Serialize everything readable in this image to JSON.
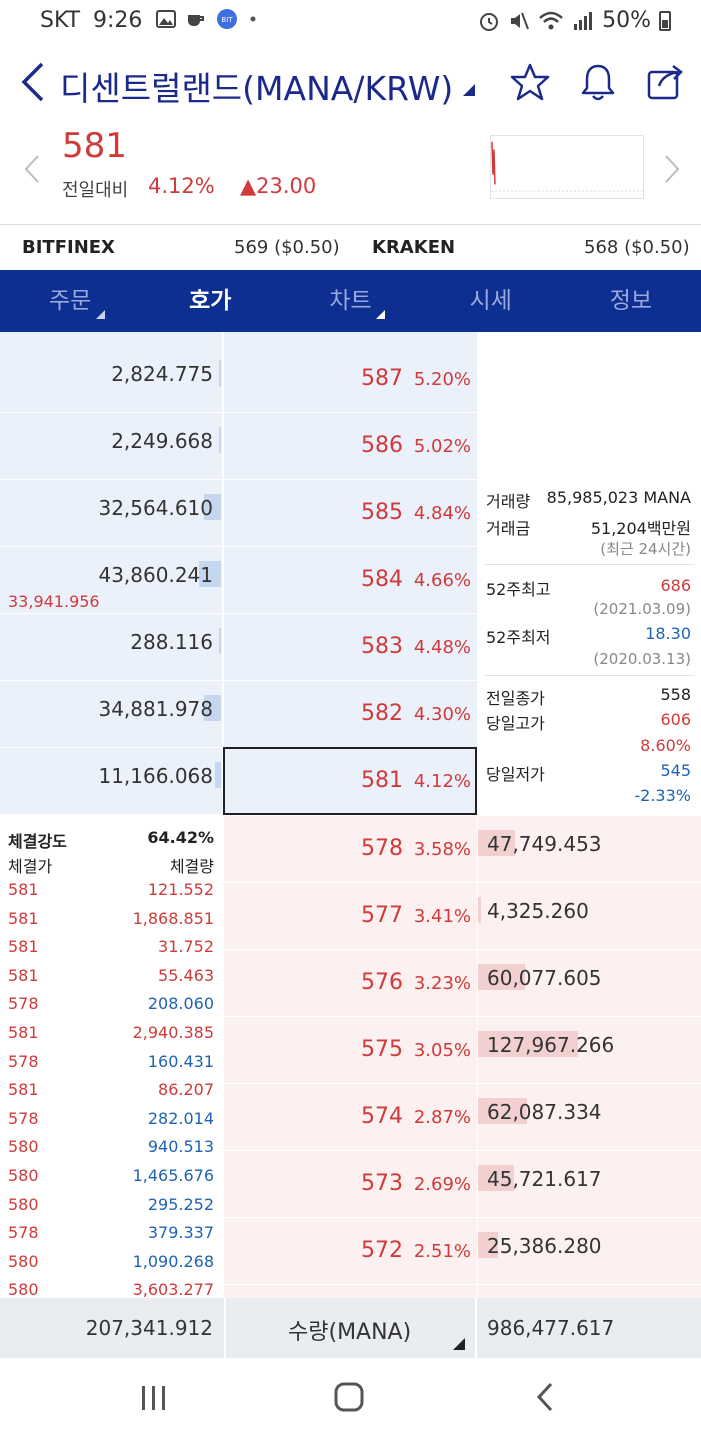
{
  "status_bar": {
    "carrier": "SKT",
    "time": "9:26",
    "battery": "50%"
  },
  "header": {
    "title": "디센트럴랜드(MANA/KRW)"
  },
  "price": {
    "current": "581",
    "label": "전일대비",
    "change_pct": "4.12%",
    "change_amt": "▲23.00"
  },
  "exchanges": [
    {
      "name": "BITFINEX",
      "value": "569 ($0.50)"
    },
    {
      "name": "KRAKEN",
      "value": "568 ($0.50)"
    }
  ],
  "tabs": [
    {
      "label": "주문",
      "caret": true,
      "active": false
    },
    {
      "label": "호가",
      "caret": true,
      "active": true
    },
    {
      "label": "차트",
      "caret": false,
      "active": false
    },
    {
      "label": "시세",
      "caret": false,
      "active": false
    },
    {
      "label": "정보",
      "caret": false,
      "active": false
    }
  ],
  "asks": [
    {
      "volume": "2,824.775",
      "fill": 0.01,
      "price": "587",
      "pct": "5.20%"
    },
    {
      "volume": "2,249.668",
      "fill": 0.01,
      "price": "586",
      "pct": "5.02%"
    },
    {
      "volume": "32,564.610",
      "fill": 0.12,
      "price": "585",
      "pct": "4.84%"
    },
    {
      "volume": "43,860.241",
      "fill": 0.16,
      "price": "584",
      "pct": "4.66%"
    },
    {
      "volume": "288.116",
      "fill": 0.0,
      "price": "583",
      "pct": "4.48%"
    },
    {
      "volume": "34,881.978",
      "fill": 0.12,
      "price": "582",
      "pct": "4.30%"
    },
    {
      "volume": "11,166.068",
      "fill": 0.04,
      "price": "581",
      "pct": "4.12%"
    }
  ],
  "ask_total_above": "33,941.956",
  "stats": {
    "volume_label": "거래량",
    "volume_value": "85,985,023 MANA",
    "amount_label": "거래금",
    "amount_value": "51,204백만원",
    "period_note": "(최근 24시간)",
    "high52_label": "52주최고",
    "high52_value": "686",
    "high52_date": "(2021.03.09)",
    "low52_label": "52주최저",
    "low52_value": "18.30",
    "low52_date": "(2020.03.13)",
    "prev_close_label": "전일종가",
    "prev_close_value": "558",
    "day_high_label": "당일고가",
    "day_high_value": "606",
    "day_high_pct": "8.60%",
    "day_low_label": "당일저가",
    "day_low_value": "545",
    "day_low_pct": "-2.33%"
  },
  "bids": [
    {
      "price": "578",
      "pct": "3.58%",
      "volume": "47,749.453",
      "fill": 0.37
    },
    {
      "price": "577",
      "pct": "3.41%",
      "volume": "4,325.260",
      "fill": 0.03
    },
    {
      "price": "576",
      "pct": "3.23%",
      "volume": "60,077.605",
      "fill": 0.47
    },
    {
      "price": "575",
      "pct": "3.05%",
      "volume": "127,967.266",
      "fill": 1.0
    },
    {
      "price": "574",
      "pct": "2.87%",
      "volume": "62,087.334",
      "fill": 0.49
    },
    {
      "price": "573",
      "pct": "2.69%",
      "volume": "45,721.617",
      "fill": 0.36
    },
    {
      "price": "572",
      "pct": "2.51%",
      "volume": "25,386.280",
      "fill": 0.2
    }
  ],
  "trades": {
    "strength_label": "체결강도",
    "strength_value": "64.42%",
    "price_header": "체결가",
    "qty_header": "체결량",
    "items": [
      {
        "price": "581",
        "qty": "121.552",
        "side": "buy"
      },
      {
        "price": "581",
        "qty": "1,868.851",
        "side": "buy"
      },
      {
        "price": "581",
        "qty": "31.752",
        "side": "buy"
      },
      {
        "price": "581",
        "qty": "55.463",
        "side": "buy"
      },
      {
        "price": "578",
        "qty": "208.060",
        "side": "sell"
      },
      {
        "price": "581",
        "qty": "2,940.385",
        "side": "buy"
      },
      {
        "price": "578",
        "qty": "160.431",
        "side": "sell"
      },
      {
        "price": "581",
        "qty": "86.207",
        "side": "buy"
      },
      {
        "price": "578",
        "qty": "282.014",
        "side": "sell"
      },
      {
        "price": "580",
        "qty": "940.513",
        "side": "sell"
      },
      {
        "price": "580",
        "qty": "1,465.676",
        "side": "sell"
      },
      {
        "price": "580",
        "qty": "295.252",
        "side": "sell"
      },
      {
        "price": "578",
        "qty": "379.337",
        "side": "sell"
      },
      {
        "price": "580",
        "qty": "1,090.268",
        "side": "sell"
      },
      {
        "price": "580",
        "qty": "3,603.277",
        "side": "buy"
      }
    ]
  },
  "footer": {
    "ask_total": "207,341.912",
    "unit_label": "수량(MANA)",
    "bid_total": "986,477.617"
  },
  "colors": {
    "up": "#d03a3a",
    "down": "#1e63b3",
    "tab_bg": "#0d2f92",
    "title": "#1b2a8a"
  },
  "icons": [
    "back-icon",
    "dropdown-caret-icon",
    "star-icon",
    "bell-icon",
    "share-icon",
    "prev-arrow-icon",
    "next-arrow-icon",
    "recent-apps-icon",
    "home-icon",
    "nav-back-icon"
  ]
}
